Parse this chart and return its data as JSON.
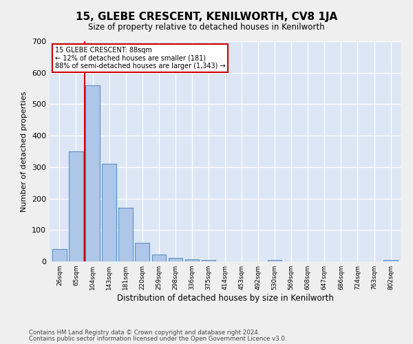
{
  "title": "15, GLEBE CRESCENT, KENILWORTH, CV8 1JA",
  "subtitle": "Size of property relative to detached houses in Kenilworth",
  "xlabel": "Distribution of detached houses by size in Kenilworth",
  "ylabel": "Number of detached properties",
  "categories": [
    "26sqm",
    "65sqm",
    "104sqm",
    "143sqm",
    "181sqm",
    "220sqm",
    "259sqm",
    "298sqm",
    "336sqm",
    "375sqm",
    "414sqm",
    "453sqm",
    "492sqm",
    "530sqm",
    "569sqm",
    "608sqm",
    "647sqm",
    "686sqm",
    "724sqm",
    "763sqm",
    "802sqm"
  ],
  "values": [
    40,
    350,
    560,
    310,
    170,
    60,
    22,
    10,
    7,
    4,
    0,
    0,
    0,
    5,
    0,
    0,
    0,
    0,
    0,
    0,
    5
  ],
  "bar_color": "#aec6e8",
  "bar_edge_color": "#5b8fc9",
  "annotation_line1": "15 GLEBE CRESCENT: 88sqm",
  "annotation_line2": "← 12% of detached houses are smaller (181)",
  "annotation_line3": "88% of semi-detached houses are larger (1,343) →",
  "vline_color": "#cc0000",
  "annotation_box_edge": "#cc0000",
  "plot_bg_color": "#dce6f5",
  "fig_bg_color": "#efefef",
  "grid_color": "#ffffff",
  "ylim": [
    0,
    700
  ],
  "yticks": [
    0,
    100,
    200,
    300,
    400,
    500,
    600,
    700
  ],
  "footer1": "Contains HM Land Registry data © Crown copyright and database right 2024.",
  "footer2": "Contains public sector information licensed under the Open Government Licence v3.0."
}
